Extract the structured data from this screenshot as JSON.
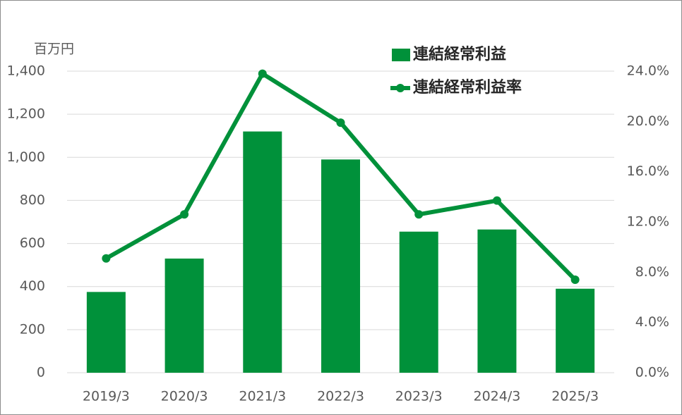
{
  "chart_data": {
    "type": "bar",
    "unit_label": "百万円",
    "categories": [
      "2019/3",
      "2020/3",
      "2021/3",
      "2022/3",
      "2023/3",
      "2024/3",
      "2025/3"
    ],
    "series": [
      {
        "name": "連結経常利益",
        "type": "bar",
        "color": "#00913a",
        "values": [
          375,
          530,
          1120,
          990,
          655,
          665,
          390
        ]
      },
      {
        "name": "連結経常利益率",
        "type": "line",
        "axis": "y2",
        "color": "#00913a",
        "values": [
          9.1,
          12.6,
          23.8,
          19.9,
          12.6,
          13.7,
          7.4
        ]
      }
    ],
    "ylim": [
      0,
      1400
    ],
    "yticks": [
      0,
      200,
      400,
      600,
      800,
      {
        "value": 1000,
        "label": "1,000"
      },
      {
        "value": 1200,
        "label": "1,200"
      },
      {
        "value": 1400,
        "label": "1,400"
      }
    ],
    "y2lim": [
      0,
      24
    ],
    "y2ticks": [
      {
        "value": 0,
        "label": "0.0%"
      },
      {
        "value": 4,
        "label": "4.0%"
      },
      {
        "value": 8,
        "label": "8.0%"
      },
      {
        "value": 12,
        "label": "12.0%"
      },
      {
        "value": 16,
        "label": "16.0%"
      },
      {
        "value": 20,
        "label": "20.0%"
      },
      {
        "value": 24,
        "label": "24.0%"
      }
    ],
    "grid": true,
    "legend": "top-right"
  }
}
